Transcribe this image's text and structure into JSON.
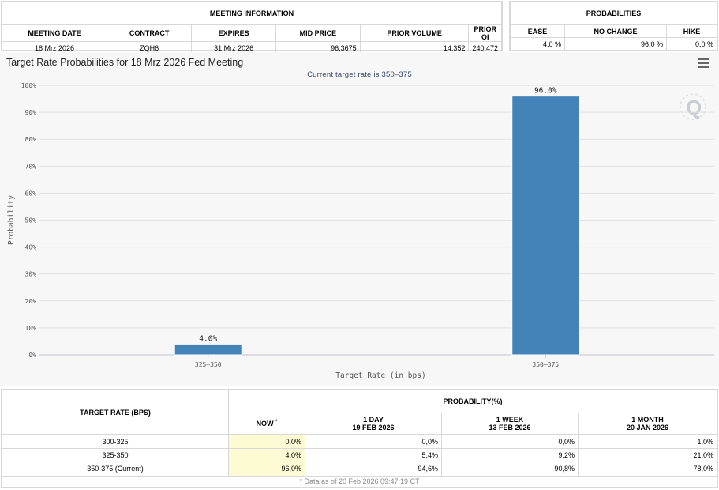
{
  "meeting_info": {
    "section_title": "MEETING INFORMATION",
    "headers": [
      "MEETING DATE",
      "CONTRACT",
      "EXPIRES",
      "MID PRICE",
      "PRIOR VOLUME",
      "PRIOR OI"
    ],
    "row": [
      "18 Mrz 2026",
      "ZQH6",
      "31 Mrz 2026",
      "96,3675",
      "14.352",
      "240.472"
    ]
  },
  "probabilities": {
    "section_title": "PROBABILITIES",
    "headers": [
      "EASE",
      "NO CHANGE",
      "HIKE"
    ],
    "row": [
      "4,0 %",
      "96,0 %",
      "0,0 %"
    ]
  },
  "chart": {
    "title": "Target Rate Probabilities for 18 Mrz 2026 Fed Meeting",
    "subtitle": "Current target rate is 350–375",
    "menu_icon": "hamburger-menu-icon",
    "logo_icon": "q-logo-icon",
    "bar_color": "#4383b8"
  },
  "chart_data": {
    "type": "bar",
    "categories": [
      "325–350",
      "350–375"
    ],
    "values": [
      4.0,
      96.0
    ],
    "data_labels": [
      "4.0%",
      "96.0%"
    ],
    "title": "Target Rate Probabilities for 18 Mrz 2026 Fed Meeting",
    "subtitle": "Current target rate is 350–375",
    "xlabel": "Target Rate (in bps)",
    "ylabel": "Probability",
    "ylim": [
      0,
      100
    ],
    "yticks": [
      "0%",
      "10%",
      "20%",
      "30%",
      "40%",
      "50%",
      "60%",
      "70%",
      "80%",
      "90%",
      "100%"
    ],
    "grid": true,
    "legend": "none"
  },
  "history_table": {
    "col_target": "TARGET RATE (BPS)",
    "group_title": "PROBABILITY(%)",
    "col_now": "NOW",
    "col_now_sup": "*",
    "col_1day": "1 DAY",
    "col_1day_date": "19 FEB 2026",
    "col_1week": "1 WEEK",
    "col_1week_date": "13 FEB 2026",
    "col_1month": "1 MONTH",
    "col_1month_date": "20 JAN 2026",
    "rows": [
      [
        "300-325",
        "0,0%",
        "0,0%",
        "0,0%",
        "1,0%"
      ],
      [
        "325-350",
        "4,0%",
        "5,4%",
        "9,2%",
        "21,0%"
      ],
      [
        "350-375 (Current)",
        "96,0%",
        "94,6%",
        "90,8%",
        "78,0%"
      ]
    ],
    "footnote": "* Data as of 20 Feb 2026 09:47:19 CT"
  }
}
